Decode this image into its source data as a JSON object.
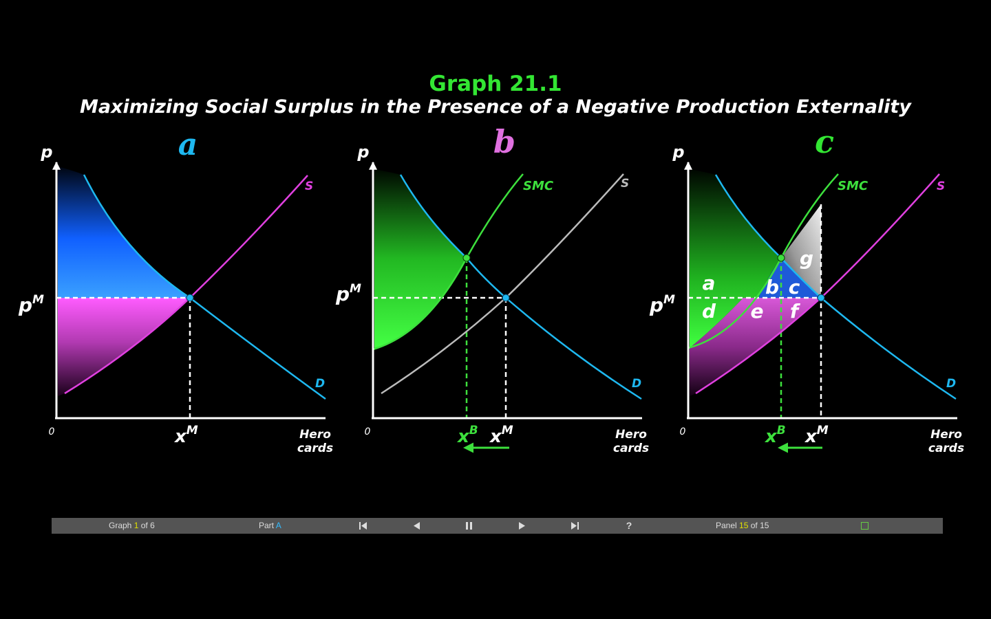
{
  "header": {
    "title": "Graph 21.1",
    "subtitle": "Maximizing Social Surplus in the Presence of a Negative Production Externality"
  },
  "panels": [
    {
      "letter": "a",
      "y_label": "p",
      "price_label": "p",
      "price_sup": "M",
      "origin": "0",
      "qty_labels": [
        {
          "main": "x",
          "sup": "M"
        }
      ],
      "x_axis_label": [
        "Hero",
        "cards"
      ],
      "curves": [
        {
          "label": "S"
        },
        {
          "label": "D"
        }
      ]
    },
    {
      "letter": "b",
      "y_label": "p",
      "price_label": "p",
      "price_sup": "M",
      "origin": "0",
      "qty_labels": [
        {
          "main": "x",
          "sup": "B"
        },
        {
          "main": "x",
          "sup": "M"
        }
      ],
      "x_axis_label": [
        "Hero",
        "cards"
      ],
      "curves": [
        {
          "label": "SMC"
        },
        {
          "label": "S"
        },
        {
          "label": "D"
        }
      ]
    },
    {
      "letter": "c",
      "y_label": "p",
      "price_label": "p",
      "price_sup": "M",
      "origin": "0",
      "qty_labels": [
        {
          "main": "x",
          "sup": "B"
        },
        {
          "main": "x",
          "sup": "M"
        }
      ],
      "x_axis_label": [
        "Hero",
        "cards"
      ],
      "curves": [
        {
          "label": "SMC"
        },
        {
          "label": "S"
        },
        {
          "label": "D"
        }
      ],
      "areas": [
        "a",
        "b",
        "c",
        "d",
        "e",
        "f",
        "g"
      ]
    }
  ],
  "colors": {
    "title": "#33e633",
    "demand": "#1eb8f0",
    "supply": "#e040e0",
    "smc": "#3de03d",
    "private_supply_b": "#bbbbbb",
    "letter_a": "#1eb8f0",
    "letter_b": "#e070e0",
    "letter_c": "#33e633"
  },
  "controls": {
    "graph_prefix": "Graph",
    "graph_current": "1",
    "graph_suffix": "of 6",
    "part_prefix": "Part",
    "part_value": "A",
    "help": "?",
    "panel_prefix": "Panel",
    "panel_current": "15",
    "panel_suffix": "of 15",
    "icons": [
      "skip-to-start-icon",
      "step-back-icon",
      "pause-icon",
      "step-forward-icon",
      "skip-to-end-icon",
      "fullscreen-icon"
    ]
  }
}
